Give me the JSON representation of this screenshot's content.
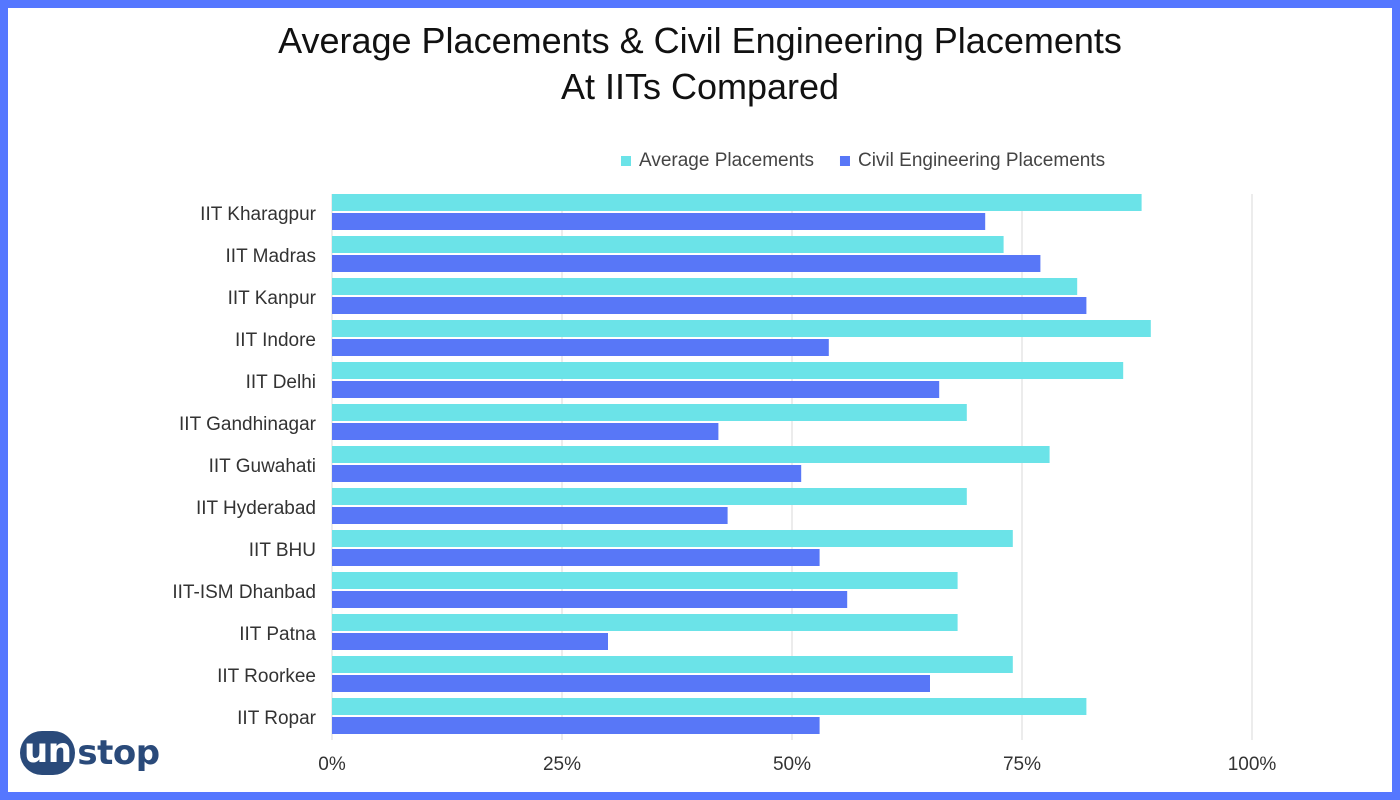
{
  "chart_data": {
    "type": "bar",
    "orientation": "horizontal",
    "title": [
      "Average Placements & Civil Engineering Placements",
      "At IITs Compared"
    ],
    "categories": [
      "IIT Kharagpur",
      "IIT Madras",
      "IIT Kanpur",
      "IIT Indore",
      "IIT Delhi",
      "IIT Gandhinagar",
      "IIT Guwahati",
      "IIT Hyderabad",
      "IIT BHU",
      "IIT-ISM Dhanbad",
      "IIT Patna",
      "IIT Roorkee",
      "IIT Ropar"
    ],
    "series": [
      {
        "name": "Average Placements",
        "color": "#6be3e8",
        "values": [
          88,
          73,
          81,
          89,
          86,
          69,
          78,
          69,
          74,
          68,
          68,
          74,
          82
        ]
      },
      {
        "name": "Civil Engineering Placements",
        "color": "#5877f7",
        "values": [
          71,
          77,
          82,
          54,
          66,
          42,
          51,
          43,
          53,
          56,
          30,
          65,
          53
        ]
      }
    ],
    "xlim": [
      0,
      100
    ],
    "xticks": [
      "0%",
      "25%",
      "50%",
      "75%",
      "100%"
    ],
    "grid": true,
    "legend_position": "top"
  },
  "logo": {
    "part1": "un",
    "part2": "stop"
  }
}
